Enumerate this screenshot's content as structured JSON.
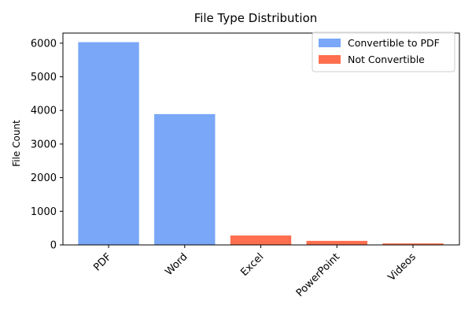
{
  "chart_data": {
    "type": "bar",
    "title": "File Type Distribution",
    "xlabel": "",
    "ylabel": "File Count",
    "categories": [
      "PDF",
      "Word",
      "Excel",
      "PowerPoint",
      "Videos"
    ],
    "values": [
      6030,
      3890,
      280,
      120,
      45
    ],
    "bar_groups": [
      "Convertible to PDF",
      "Convertible to PDF",
      "Not Convertible",
      "Not Convertible",
      "Not Convertible"
    ],
    "ylim": [
      0,
      6300
    ],
    "yticks": [
      0,
      1000,
      2000,
      3000,
      4000,
      5000,
      6000
    ],
    "grid": false,
    "legend": {
      "position": "top-right",
      "entries": [
        {
          "label": "Convertible to PDF",
          "color": "#7aa7f7"
        },
        {
          "label": "Not Convertible",
          "color": "#ff6e4e"
        }
      ]
    },
    "colors": {
      "Convertible to PDF": "#7aa7f7",
      "Not Convertible": "#ff6e4e"
    }
  }
}
